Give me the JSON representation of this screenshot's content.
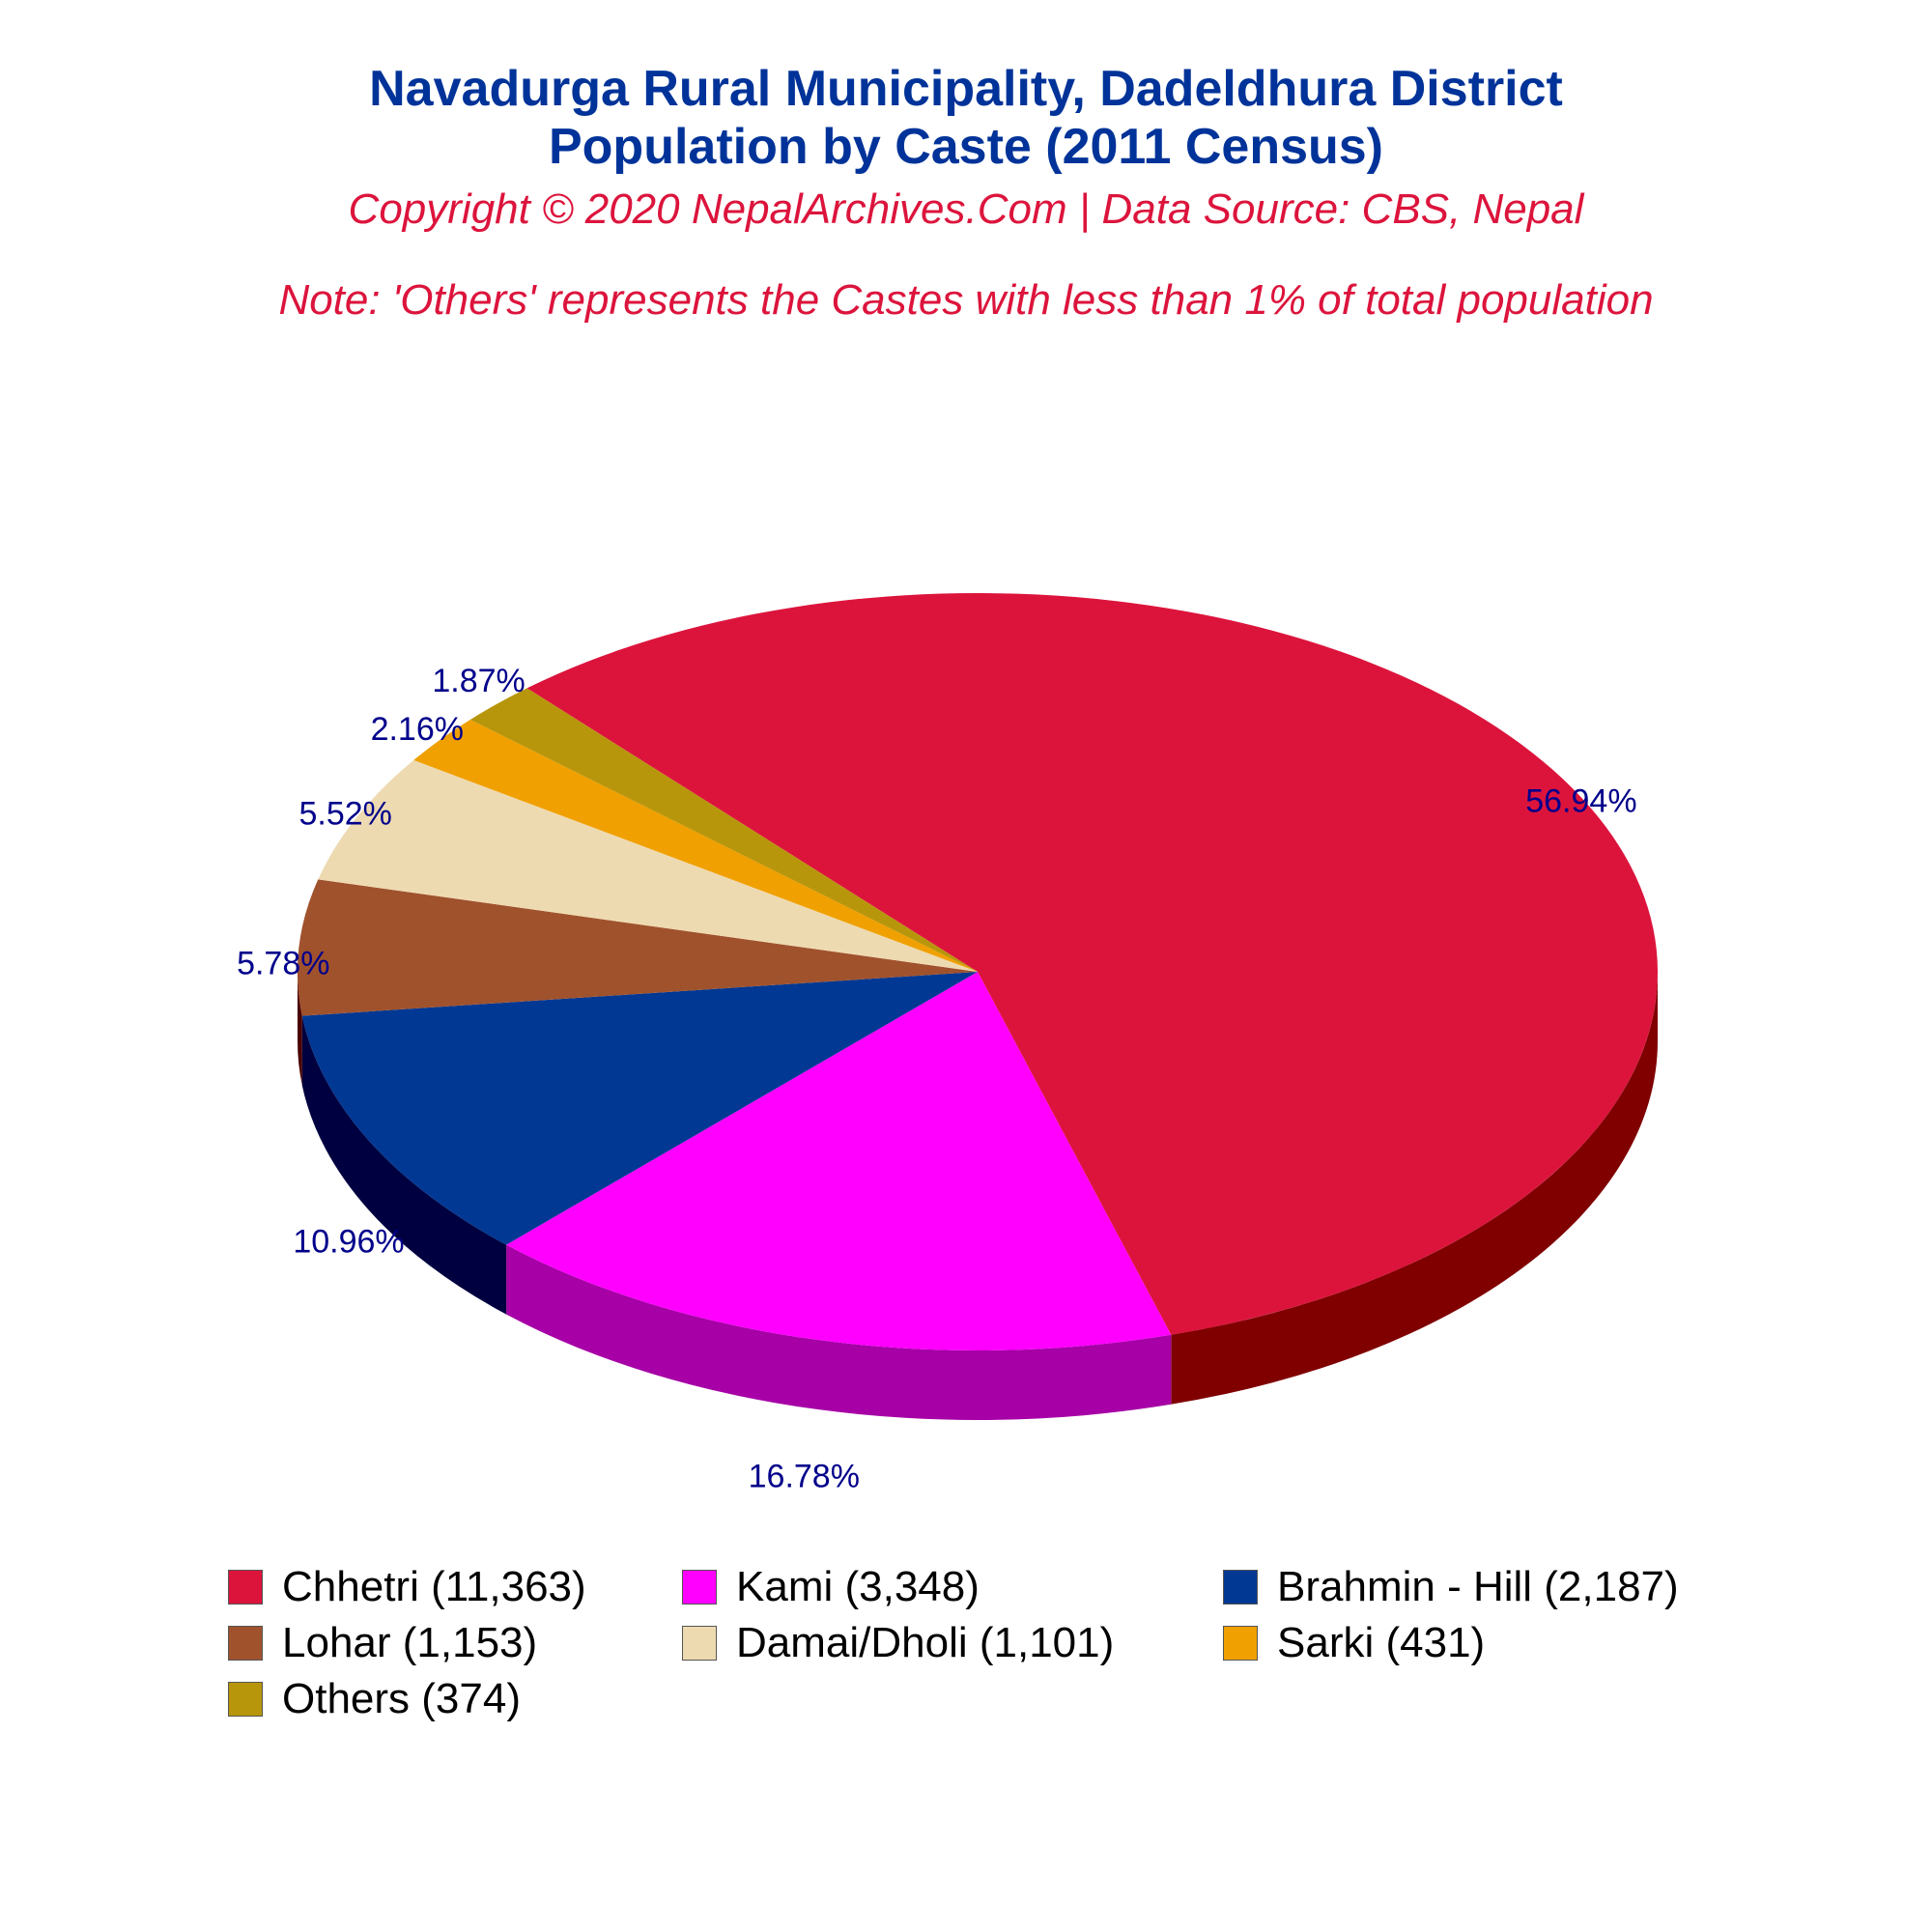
{
  "titles": {
    "line1": "Navadurga Rural Municipality, Dadeldhura District",
    "line2": "Population by Caste (2011 Census)",
    "copyright": "Copyright © 2020 NepalArchives.Com | Data Source: CBS, Nepal",
    "note": "Note: 'Others' represents the Castes with less than 1% of total population"
  },
  "chart_data": {
    "type": "pie",
    "style": "3d",
    "slices": [
      {
        "category": "Chhetri",
        "value": 11363,
        "percent_label": "56.94%",
        "legend_label": "Chhetri (11,363)",
        "color": "#DC143C",
        "side_color": "#800000"
      },
      {
        "category": "Kami",
        "value": 3348,
        "percent_label": "16.78%",
        "legend_label": "Kami (3,348)",
        "color": "#FF00FF",
        "side_color": "#A600A6"
      },
      {
        "category": "Brahmin - Hill",
        "value": 2187,
        "percent_label": "10.96%",
        "legend_label": "Brahmin - Hill (2,187)",
        "color": "#003893",
        "side_color": "#000040"
      },
      {
        "category": "Lohar",
        "value": 1153,
        "percent_label": "5.78%",
        "legend_label": "Lohar (1,153)",
        "color": "#A0522D",
        "side_color": "#4A0000"
      },
      {
        "category": "Damai/Dholi",
        "value": 1101,
        "percent_label": "5.52%",
        "legend_label": "Damai/Dholi (1,101)",
        "color": "#EEDAB0",
        "side_color": "#B8A27A"
      },
      {
        "category": "Sarki",
        "value": 431,
        "percent_label": "2.16%",
        "legend_label": "Sarki (431)",
        "color": "#F0A000",
        "side_color": "#A06A00"
      },
      {
        "category": "Others",
        "value": 374,
        "percent_label": "1.87%",
        "legend_label": "Others (374)",
        "color": "#B8960C",
        "side_color": "#7A6408"
      }
    ],
    "label_color": "#00008B",
    "legend_position": "bottom"
  }
}
